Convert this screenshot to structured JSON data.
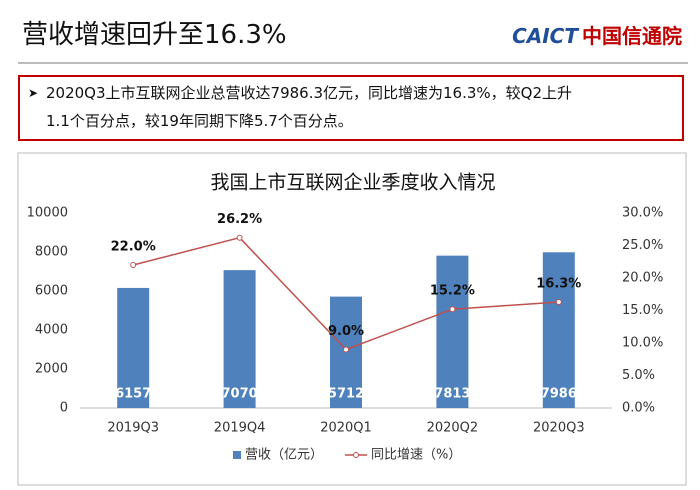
{
  "header": {
    "title": "营收增速回升至16.3%",
    "logo_en": "CAICT",
    "logo_cn": "中国信通院"
  },
  "bullet": {
    "lines": [
      "2020Q3上市互联网企业总营收达7986.3亿元，同比增速为16.3%，较Q2上升",
      "1.1个百分点，较19年同期下降5.7个百分点。"
    ]
  },
  "chart_data": {
    "type": "bar",
    "title": "我国上市互联网企业季度收入情况",
    "categories": [
      "2019Q3",
      "2019Q4",
      "2020Q1",
      "2020Q2",
      "2020Q3"
    ],
    "series": [
      {
        "name": "营收（亿元）",
        "type": "bar",
        "color": "#4f81bd",
        "values": [
          6157,
          7070,
          5712,
          7813,
          7986
        ]
      },
      {
        "name": "同比增速（%）",
        "type": "line",
        "axis": "y2",
        "color": "#c0504d",
        "values": [
          22.0,
          26.2,
          9.0,
          15.2,
          16.3
        ],
        "value_labels": [
          "22.0%",
          "26.2%",
          "9.0%",
          "15.2%",
          "16.3%"
        ]
      }
    ],
    "ylim": [
      0,
      10000
    ],
    "yticks": [
      0,
      2000,
      4000,
      6000,
      8000,
      10000
    ],
    "y2lim": [
      0,
      30
    ],
    "y2ticks": [
      {
        "value": 0,
        "label": "0.0%"
      },
      {
        "value": 5,
        "label": "5.0%"
      },
      {
        "value": 10,
        "label": "10.0%"
      },
      {
        "value": 15,
        "label": "15.0%"
      },
      {
        "value": 20,
        "label": "20.0%"
      },
      {
        "value": 25,
        "label": "25.0%"
      },
      {
        "value": 30,
        "label": "30.0%"
      }
    ],
    "legend": "bottom"
  }
}
